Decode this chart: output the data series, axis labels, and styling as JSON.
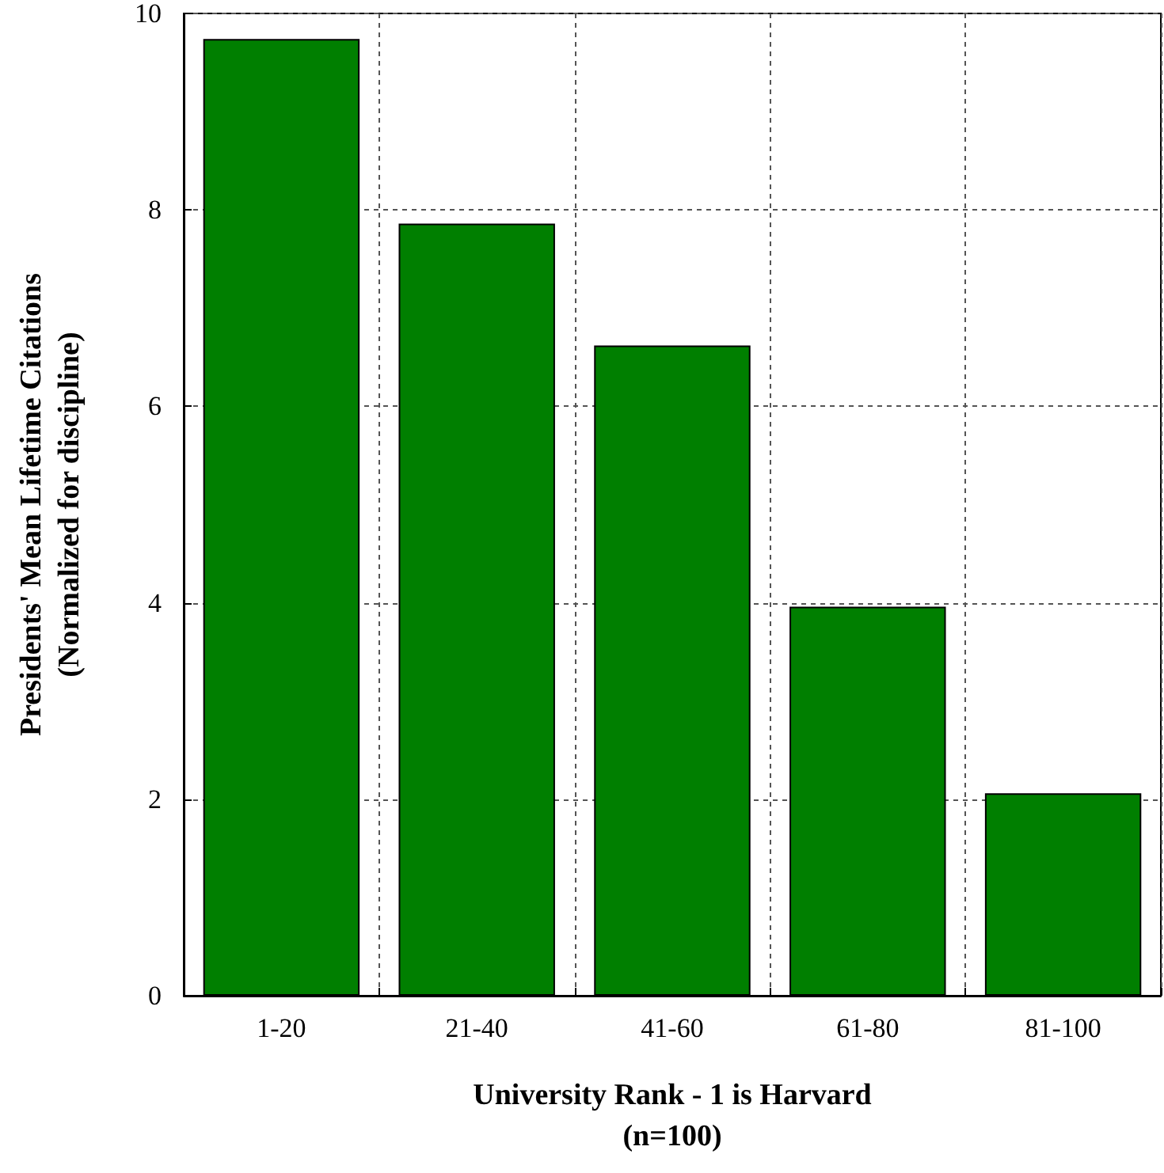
{
  "chart_data": {
    "type": "bar",
    "xlabel": "University Rank - 1 is Harvard\n(n=100)",
    "ylabel": "Presidents' Mean Lifetime Citations\n(Normalized for discipline)",
    "categories": [
      "1-20",
      "21-40",
      "41-60",
      "61-80",
      "81-100"
    ],
    "values": [
      9.74,
      7.86,
      6.62,
      3.96,
      2.06
    ],
    "color": "#007f00",
    "ylim": [
      0,
      10
    ],
    "yticks": [
      0,
      2,
      4,
      6,
      8,
      10
    ],
    "grid": true
  }
}
